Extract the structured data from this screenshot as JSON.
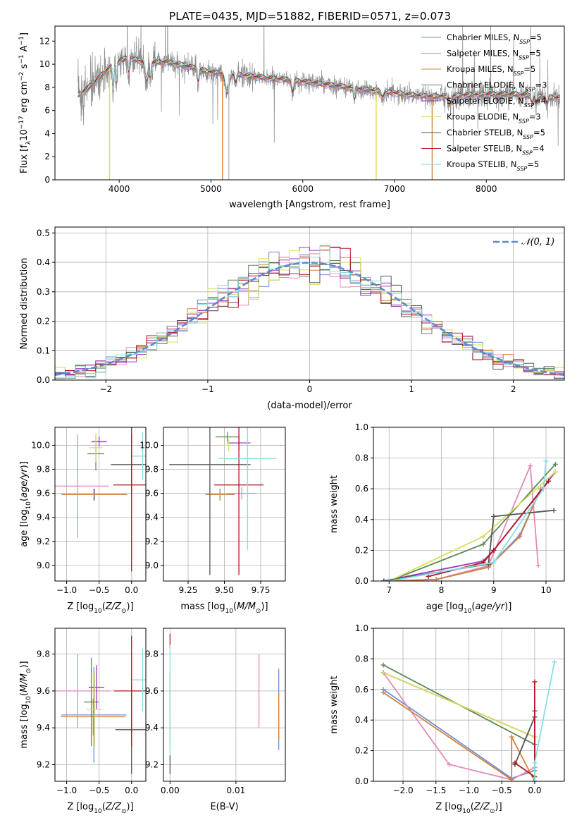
{
  "title": "PLATE=0435, MJD=51882, FIBERID=0571, z=0.073",
  "colors": {
    "Chabrier MILES": "#6e8fd6",
    "Salpeter MILES": "#e489b9",
    "Kroupa MILES": "#d2833e",
    "Chabrier ELODIE": "#5d8a58",
    "Salpeter ELODIE": "#9a35b8",
    "Kroupa ELODIE": "#d8df5c",
    "Chabrier STELIB": "#555555",
    "Salpeter STELIB": "#b01722",
    "Kroupa STELIB": "#86dde3",
    "data": "#8c8c8c",
    "gauss": "#5b8ad6"
  },
  "chart_data": [
    {
      "id": "spectrum",
      "type": "line",
      "xlabel": "wavelength [Angstrom, rest frame]",
      "ylabel": "Flux [f_λ 10^-17 erg cm^-2 s^-1 A^-1]",
      "xlim": [
        3300,
        8850
      ],
      "ylim": [
        0,
        13.3
      ],
      "xticks": [
        4000,
        5000,
        6000,
        7000,
        8000
      ],
      "yticks": [
        0,
        2,
        4,
        6,
        8,
        10,
        12
      ],
      "grid": false,
      "legend_position": "upper-right",
      "legend": [
        {
          "name": "Chabrier MILES",
          "sub": "SSP",
          "n": "5"
        },
        {
          "name": "Salpeter MILES",
          "sub": "SSP",
          "n": "5"
        },
        {
          "name": "Kroupa MILES",
          "sub": "SSP",
          "n": "5"
        },
        {
          "name": "Chabrier ELODIE",
          "sub": "SSP",
          "n": "3"
        },
        {
          "name": "Salpeter ELODIE",
          "sub": "SSP",
          "n": "4"
        },
        {
          "name": "Kroupa ELODIE",
          "sub": "SSP",
          "n": "3"
        },
        {
          "name": "Chabrier STELIB",
          "sub": "SSP",
          "n": "5"
        },
        {
          "name": "Salpeter STELIB",
          "sub": "SSP",
          "n": "4"
        },
        {
          "name": "Kroupa STELIB",
          "sub": "SSP",
          "n": "5"
        }
      ],
      "continuum": [
        [
          3550,
          7.3
        ],
        [
          3700,
          8.2
        ],
        [
          3850,
          9.4
        ],
        [
          4000,
          10.3
        ],
        [
          4100,
          10.6
        ],
        [
          4300,
          10.1
        ],
        [
          4500,
          10.2
        ],
        [
          4700,
          9.9
        ],
        [
          5000,
          9.3
        ],
        [
          5300,
          9.1
        ],
        [
          5600,
          8.8
        ],
        [
          5900,
          8.6
        ],
        [
          6200,
          8.3
        ],
        [
          6500,
          8.0
        ],
        [
          6800,
          7.7
        ],
        [
          7100,
          7.4
        ],
        [
          7400,
          7.2
        ],
        [
          7700,
          7.3
        ],
        [
          8000,
          7.4
        ],
        [
          8300,
          7.4
        ],
        [
          8700,
          7.1
        ]
      ]
    },
    {
      "id": "residuals",
      "type": "histogram",
      "xlabel": "(data-model)/error",
      "ylabel": "Normed distribution",
      "xlim": [
        -2.5,
        2.5
      ],
      "ylim": [
        0,
        0.52
      ],
      "xticks": [
        -2,
        -1,
        0,
        1,
        2
      ],
      "yticks": [
        0.0,
        0.1,
        0.2,
        0.3,
        0.4,
        0.5
      ],
      "grid": true,
      "legend_position": "upper-right",
      "legend": [
        {
          "name": "𝒩(0, 1)",
          "style": "dashed"
        }
      ],
      "bin_width": 0.1
    },
    {
      "id": "age_vs_z",
      "type": "errorbar",
      "xlabel": "Z [log10(Z/Z⊙)]",
      "ylabel": "age [log10(age/yr)]",
      "xlim": [
        -1.18,
        0.22
      ],
      "ylim": [
        8.87,
        10.15
      ],
      "xticks": [
        -1.0,
        -0.5,
        0.0
      ],
      "yticks": [
        9.0,
        9.2,
        9.4,
        9.6,
        9.8,
        10.0
      ],
      "grid": true,
      "points": [
        {
          "model": "Chabrier MILES",
          "x": -0.57,
          "xerr": 0.5,
          "y": 9.59,
          "yerr": 0.05
        },
        {
          "model": "Salpeter MILES",
          "x": -0.83,
          "xerr": 0.48,
          "y": 9.66,
          "yerr": 0.43
        },
        {
          "model": "Kroupa MILES",
          "x": -0.58,
          "xerr": 0.5,
          "y": 9.59,
          "yerr": 0.05
        },
        {
          "model": "Chabrier ELODIE",
          "x": -0.55,
          "xerr": 0.13,
          "y": 9.93,
          "yerr": 0.14
        },
        {
          "model": "Salpeter ELODIE",
          "x": -0.5,
          "xerr": 0.12,
          "y": 10.03,
          "yerr": 0.04
        },
        {
          "model": "Kroupa ELODIE",
          "x": -0.55,
          "xerr": 0.1,
          "y": 9.98,
          "yerr": 0.12
        },
        {
          "model": "Chabrier STELIB",
          "x": 0.0,
          "xerr": 0.32,
          "y": 9.84,
          "yerr": 0.25
        },
        {
          "model": "Salpeter STELIB",
          "x": 0.0,
          "xerr": 0.28,
          "y": 9.67,
          "yerr": 0.72
        },
        {
          "model": "Kroupa STELIB",
          "x": 0.17,
          "xerr": 0.16,
          "y": 9.91,
          "yerr": 0.2
        }
      ]
    },
    {
      "id": "age_vs_mass",
      "type": "errorbar",
      "xlabel": "mass [log10(M/M⊙)]",
      "ylabel": "",
      "xlim": [
        9.08,
        9.92
      ],
      "ylim": [
        8.87,
        10.15
      ],
      "xticks": [
        9.25,
        9.5,
        9.75
      ],
      "yticks": [
        9.0,
        9.2,
        9.4,
        9.6,
        9.8,
        10.0
      ],
      "grid": true,
      "points": [
        {
          "model": "Chabrier MILES",
          "x": 9.47,
          "xerr": 0.1,
          "y": 9.59,
          "yerr": 0.05
        },
        {
          "model": "Salpeter MILES",
          "x": 9.62,
          "xerr": 0.1,
          "y": 9.6,
          "yerr": 0.05
        },
        {
          "model": "Kroupa MILES",
          "x": 9.47,
          "xerr": 0.1,
          "y": 9.59,
          "yerr": 0.05
        },
        {
          "model": "Chabrier ELODIE",
          "x": 9.52,
          "xerr": 0.08,
          "y": 10.07,
          "yerr": 0.04
        },
        {
          "model": "Salpeter ELODIE",
          "x": 9.6,
          "xerr": 0.08,
          "y": 10.02,
          "yerr": 0.06
        },
        {
          "model": "Kroupa ELODIE",
          "x": 9.53,
          "xerr": 0.07,
          "y": 10.0,
          "yerr": 0.05
        },
        {
          "model": "Chabrier STELIB",
          "x": 9.4,
          "xerr": 0.28,
          "y": 9.84,
          "yerr": 0.92
        },
        {
          "model": "Salpeter STELIB",
          "x": 9.6,
          "xerr": 0.17,
          "y": 9.67,
          "yerr": 0.75
        },
        {
          "model": "Kroupa STELIB",
          "x": 9.66,
          "xerr": 0.2,
          "y": 9.89,
          "yerr": 0.76
        }
      ]
    },
    {
      "id": "massweight_vs_age",
      "type": "line",
      "xlabel": "age [log10(age/yr)]",
      "ylabel": "mass weight",
      "xlim": [
        6.7,
        10.35
      ],
      "ylim": [
        0,
        1
      ],
      "xticks": [
        7,
        8,
        9,
        10
      ],
      "yticks": [
        0.0,
        0.2,
        0.4,
        0.6,
        0.8,
        1.0
      ],
      "grid": true,
      "series": [
        {
          "model": "Chabrier MILES",
          "x": [
            6.9,
            7.9,
            8.9,
            9.5,
            9.9
          ],
          "y": [
            0.0,
            0.01,
            0.09,
            0.3,
            0.6
          ]
        },
        {
          "model": "Salpeter MILES",
          "x": [
            6.9,
            7.9,
            8.9,
            9.7,
            9.85
          ],
          "y": [
            0.0,
            0.01,
            0.1,
            0.75,
            0.1
          ]
        },
        {
          "model": "Kroupa MILES",
          "x": [
            6.9,
            7.9,
            8.9,
            9.5,
            9.9
          ],
          "y": [
            0.0,
            0.01,
            0.09,
            0.29,
            0.6
          ]
        },
        {
          "model": "Chabrier ELODIE",
          "x": [
            7.0,
            8.8,
            10.18
          ],
          "y": [
            0.0,
            0.24,
            0.76
          ]
        },
        {
          "model": "Salpeter ELODIE",
          "x": [
            6.9,
            8.8,
            9.0,
            10.18
          ],
          "y": [
            0.0,
            0.13,
            0.2,
            0.71
          ]
        },
        {
          "model": "Kroupa ELODIE",
          "x": [
            7.0,
            8.8,
            10.18
          ],
          "y": [
            0.0,
            0.29,
            0.71
          ]
        },
        {
          "model": "Chabrier STELIB",
          "x": [
            6.9,
            8.9,
            9.0,
            10.15
          ],
          "y": [
            0.0,
            0.11,
            0.42,
            0.46
          ]
        },
        {
          "model": "Salpeter STELIB",
          "x": [
            7.75,
            8.8,
            9.0,
            10.05
          ],
          "y": [
            0.03,
            0.12,
            0.2,
            0.65
          ]
        },
        {
          "model": "Kroupa STELIB",
          "x": [
            7.0,
            9.0,
            9.95,
            10.0
          ],
          "y": [
            0.0,
            0.12,
            0.6,
            0.78
          ]
        }
      ]
    },
    {
      "id": "mass_vs_z",
      "type": "errorbar",
      "xlabel": "Z [log10(Z/Z⊙)]",
      "ylabel": "mass [log10(M/M⊙)]",
      "xlim": [
        -1.18,
        0.22
      ],
      "ylim": [
        9.11,
        9.94
      ],
      "xticks": [
        -1.0,
        -0.5,
        0.0
      ],
      "yticks": [
        9.2,
        9.4,
        9.6,
        9.8
      ],
      "grid": true,
      "points": [
        {
          "model": "Chabrier MILES",
          "x": -0.58,
          "xerr": 0.5,
          "y": 9.47,
          "yerr": 0.26
        },
        {
          "model": "Salpeter MILES",
          "x": -0.83,
          "xerr": 0.5,
          "y": 9.6,
          "yerr": 0.2
        },
        {
          "model": "Kroupa MILES",
          "x": -0.59,
          "xerr": 0.5,
          "y": 9.46,
          "yerr": 0.1
        },
        {
          "model": "Chabrier ELODIE",
          "x": -0.62,
          "xerr": 0.11,
          "y": 9.54,
          "yerr": 0.24
        },
        {
          "model": "Salpeter ELODIE",
          "x": -0.54,
          "xerr": 0.12,
          "y": 9.62,
          "yerr": 0.12
        },
        {
          "model": "Kroupa ELODIE",
          "x": -0.57,
          "xerr": 0.12,
          "y": 9.5,
          "yerr": 0.2
        },
        {
          "model": "Chabrier STELIB",
          "x": 0.0,
          "xerr": 0.25,
          "y": 9.39,
          "yerr": 0.24
        },
        {
          "model": "Salpeter STELIB",
          "x": 0.0,
          "xerr": 0.27,
          "y": 9.6,
          "yerr": 0.3
        },
        {
          "model": "Kroupa STELIB",
          "x": 0.17,
          "xerr": 0.16,
          "y": 9.66,
          "yerr": 0.17
        }
      ]
    },
    {
      "id": "mass_vs_ebv",
      "type": "errorbar",
      "xlabel": "E(B-V)",
      "ylabel": "",
      "xlim": [
        -0.001,
        0.0175
      ],
      "ylim": [
        9.11,
        9.94
      ],
      "xticks": [
        0.0,
        0.01
      ],
      "yticks": [
        9.2,
        9.4,
        9.6,
        9.8
      ],
      "grid": true,
      "points": [
        {
          "model": "Chabrier MILES",
          "x": 0.0165,
          "xerr": 0,
          "y": 9.5,
          "yerr": 0.22
        },
        {
          "model": "Salpeter MILES",
          "x": 0.0135,
          "xerr": 0,
          "y": 9.6,
          "yerr": 0.2
        },
        {
          "model": "Kroupa MILES",
          "x": 0.0165,
          "xerr": 0,
          "y": 9.46,
          "yerr": 0.13
        },
        {
          "model": "Chabrier ELODIE",
          "x": 0.0,
          "xerr": 0,
          "y": 9.5,
          "yerr": 0.2
        },
        {
          "model": "Salpeter ELODIE",
          "x": 0.0,
          "xerr": 0,
          "y": 9.6,
          "yerr": 0.1
        },
        {
          "model": "Kroupa ELODIE",
          "x": 0.0,
          "xerr": 0,
          "y": 9.5,
          "yerr": 0.2
        },
        {
          "model": "Chabrier STELIB",
          "x": 0.0,
          "xerr": 0,
          "y": 9.2,
          "yerr": 0.05
        },
        {
          "model": "Salpeter STELIB",
          "x": 0.0,
          "xerr": 0,
          "y": 9.87,
          "yerr": 0.04
        },
        {
          "model": "Kroupa STELIB",
          "x": 0.0,
          "xerr": 0,
          "y": 9.55,
          "yerr": 0.3
        }
      ]
    },
    {
      "id": "massweight_vs_z",
      "type": "line",
      "xlabel": "Z [log10(Z/Z⊙)]",
      "ylabel": "mass weight",
      "xlim": [
        -2.45,
        0.45
      ],
      "ylim": [
        0,
        1
      ],
      "xticks": [
        -2.0,
        -1.5,
        -1.0,
        -0.5,
        0.0
      ],
      "yticks": [
        0.0,
        0.2,
        0.4,
        0.6,
        0.8,
        1.0
      ],
      "grid": true,
      "series": [
        {
          "model": "Chabrier MILES",
          "x": [
            -2.3,
            -0.35,
            0.0
          ],
          "y": [
            0.6,
            0.02,
            0.07
          ]
        },
        {
          "model": "Salpeter MILES",
          "x": [
            -2.3,
            -1.3,
            -0.35,
            0.0
          ],
          "y": [
            0.71,
            0.11,
            0.01,
            0.09
          ]
        },
        {
          "model": "Kroupa MILES",
          "x": [
            -2.3,
            -0.35,
            -0.35,
            0.0
          ],
          "y": [
            0.58,
            0.01,
            0.29,
            0.0
          ]
        },
        {
          "model": "Chabrier ELODIE",
          "x": [
            -2.3,
            0.0,
            0.0
          ],
          "y": [
            0.76,
            0.24,
            0.0
          ]
        },
        {
          "model": "Salpeter ELODIE",
          "x": [
            -2.3,
            0.0,
            0.0
          ],
          "y": [
            0.71,
            0.29,
            0.0
          ]
        },
        {
          "model": "Kroupa ELODIE",
          "x": [
            -2.3,
            0.0
          ],
          "y": [
            0.71,
            0.29
          ]
        },
        {
          "model": "Chabrier STELIB",
          "x": [
            -0.3,
            0.0,
            0.0,
            0.0
          ],
          "y": [
            0.11,
            0.42,
            0.46,
            0.0
          ]
        },
        {
          "model": "Salpeter STELIB",
          "x": [
            -0.3,
            0.0,
            0.0
          ],
          "y": [
            0.12,
            0.03,
            0.65
          ]
        },
        {
          "model": "Kroupa STELIB",
          "x": [
            0.0,
            0.0,
            0.3
          ],
          "y": [
            0.0,
            0.12,
            0.78
          ]
        }
      ]
    }
  ]
}
